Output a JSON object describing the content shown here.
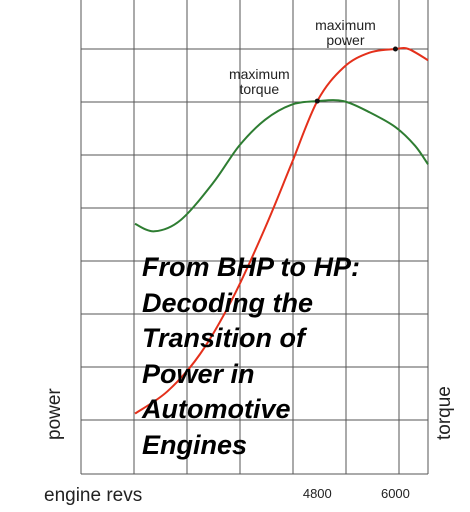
{
  "overlay_title": {
    "lines": [
      "From BHP to HP:",
      "Decoding the",
      "Transition of",
      "Power in",
      "Automotive",
      "Engines"
    ]
  },
  "chart_data": {
    "type": "line",
    "title": "",
    "xlabel": "engine revs",
    "ylabel_left": "power",
    "ylabel_right": "torque",
    "xlim": [
      2000,
      6500
    ],
    "ylim": [
      0,
      100
    ],
    "x_ticks": [
      4800,
      6000
    ],
    "grid": true,
    "colors": {
      "power": "#e4301b",
      "torque": "#2e7d32",
      "grid": "#555555"
    },
    "annotations": [
      {
        "lines": [
          "maximum",
          "power"
        ],
        "x": 6000,
        "y": 100
      },
      {
        "lines": [
          "maximum",
          "torque"
        ],
        "x": 4800,
        "y": 86
      }
    ],
    "series": [
      {
        "name": "power",
        "color": "#e4301b",
        "x": [
          2000,
          2500,
          3000,
          3500,
          4000,
          4400,
          4800,
          5200,
          5600,
          6000,
          6200,
          6500
        ],
        "y": [
          2,
          8,
          18,
          33,
          52,
          69,
          86,
          95,
          99,
          100,
          100,
          97
        ]
      },
      {
        "name": "torque",
        "color": "#2e7d32",
        "x": [
          2000,
          2300,
          2700,
          3200,
          3600,
          4000,
          4400,
          4800,
          5200,
          5600,
          6000,
          6300,
          6500
        ],
        "y": [
          53,
          51,
          54,
          64,
          74,
          81,
          85,
          86,
          86,
          83,
          79,
          74,
          69
        ]
      }
    ]
  }
}
